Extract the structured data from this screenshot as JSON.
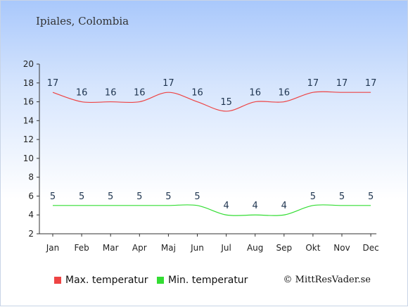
{
  "location": "Ipiales, Colombia",
  "copyright": "© MittResVader.se",
  "chart_data": {
    "type": "line",
    "categories": [
      "Jan",
      "Feb",
      "Mar",
      "Apr",
      "Maj",
      "Jun",
      "Jul",
      "Aug",
      "Sep",
      "Okt",
      "Nov",
      "Dec"
    ],
    "series": [
      {
        "name": "Max. temperatur",
        "color": "#ee4444",
        "values": [
          17,
          16,
          16,
          16,
          17,
          16,
          15,
          16,
          16,
          17,
          17,
          17
        ]
      },
      {
        "name": "Min. temperatur",
        "color": "#33dd33",
        "values": [
          5,
          5,
          5,
          5,
          5,
          5,
          4,
          4,
          4,
          5,
          5,
          5
        ]
      }
    ],
    "yticks": [
      2,
      4,
      6,
      8,
      10,
      12,
      14,
      16,
      18,
      20
    ],
    "ylim": [
      2,
      20
    ],
    "grid": false,
    "legend": "bottom-left"
  }
}
